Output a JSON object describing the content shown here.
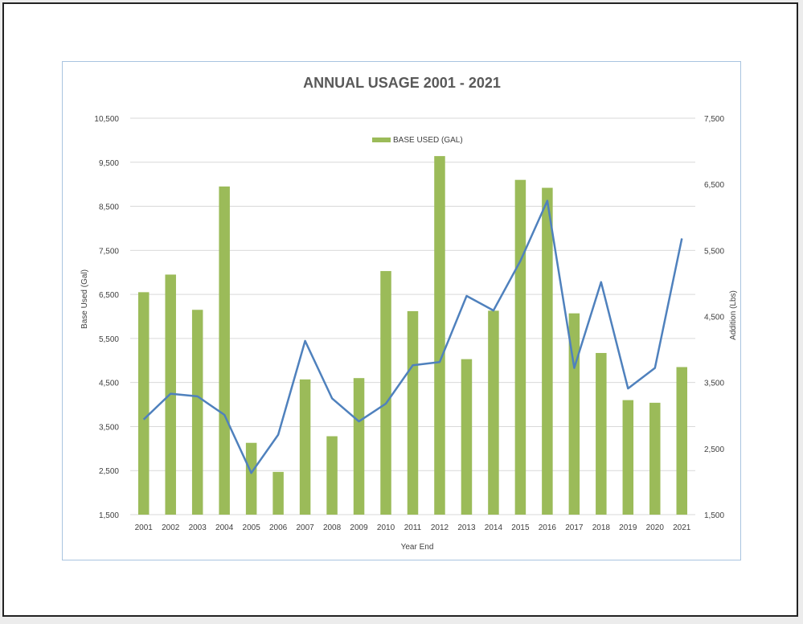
{
  "chart_data": {
    "type": "bar",
    "title": "ANNUAL USAGE 2001 - 2021",
    "xlabel": "Year End",
    "ylabel": "Base Used (Gal)",
    "y2label": "Addition (Lbs)",
    "ylim": [
      1500,
      10500
    ],
    "y2lim": [
      1500,
      7500
    ],
    "yticks": [
      "1,500",
      "2,500",
      "3,500",
      "4,500",
      "5,500",
      "6,500",
      "7,500",
      "8,500",
      "9,500",
      "10,500"
    ],
    "y2ticks": [
      "1,500",
      "2,500",
      "3,500",
      "4,500",
      "5,500",
      "6,500",
      "7,500"
    ],
    "yticks_values": [
      1500,
      2500,
      3500,
      4500,
      5500,
      6500,
      7500,
      8500,
      9500,
      10500
    ],
    "y2ticks_values": [
      1500,
      2500,
      3500,
      4500,
      5500,
      6500,
      7500
    ],
    "grid": true,
    "legend_position": "top-center",
    "categories": [
      "2001",
      "2002",
      "2003",
      "2004",
      "2005",
      "2006",
      "2007",
      "2008",
      "2009",
      "2010",
      "2011",
      "2012",
      "2013",
      "2014",
      "2015",
      "2016",
      "2017",
      "2018",
      "2019",
      "2020",
      "2021"
    ],
    "series": [
      {
        "name": "BASE USED (GAL)",
        "type": "bar",
        "axis": "left",
        "color": "#9bbb59",
        "values": [
          6550,
          6950,
          6150,
          8950,
          3130,
          2470,
          4570,
          3280,
          4600,
          7030,
          6120,
          9640,
          5030,
          6130,
          9100,
          8920,
          6070,
          5170,
          4100,
          4040,
          4850
        ]
      },
      {
        "name": "Addition (Lbs)",
        "type": "line",
        "axis": "right",
        "color": "#4f81bd",
        "values": [
          2940,
          3330,
          3290,
          3010,
          2130,
          2710,
          4130,
          3260,
          2910,
          3180,
          3760,
          3810,
          4810,
          4590,
          5340,
          6250,
          3720,
          5020,
          3410,
          3720,
          5680
        ]
      }
    ]
  }
}
